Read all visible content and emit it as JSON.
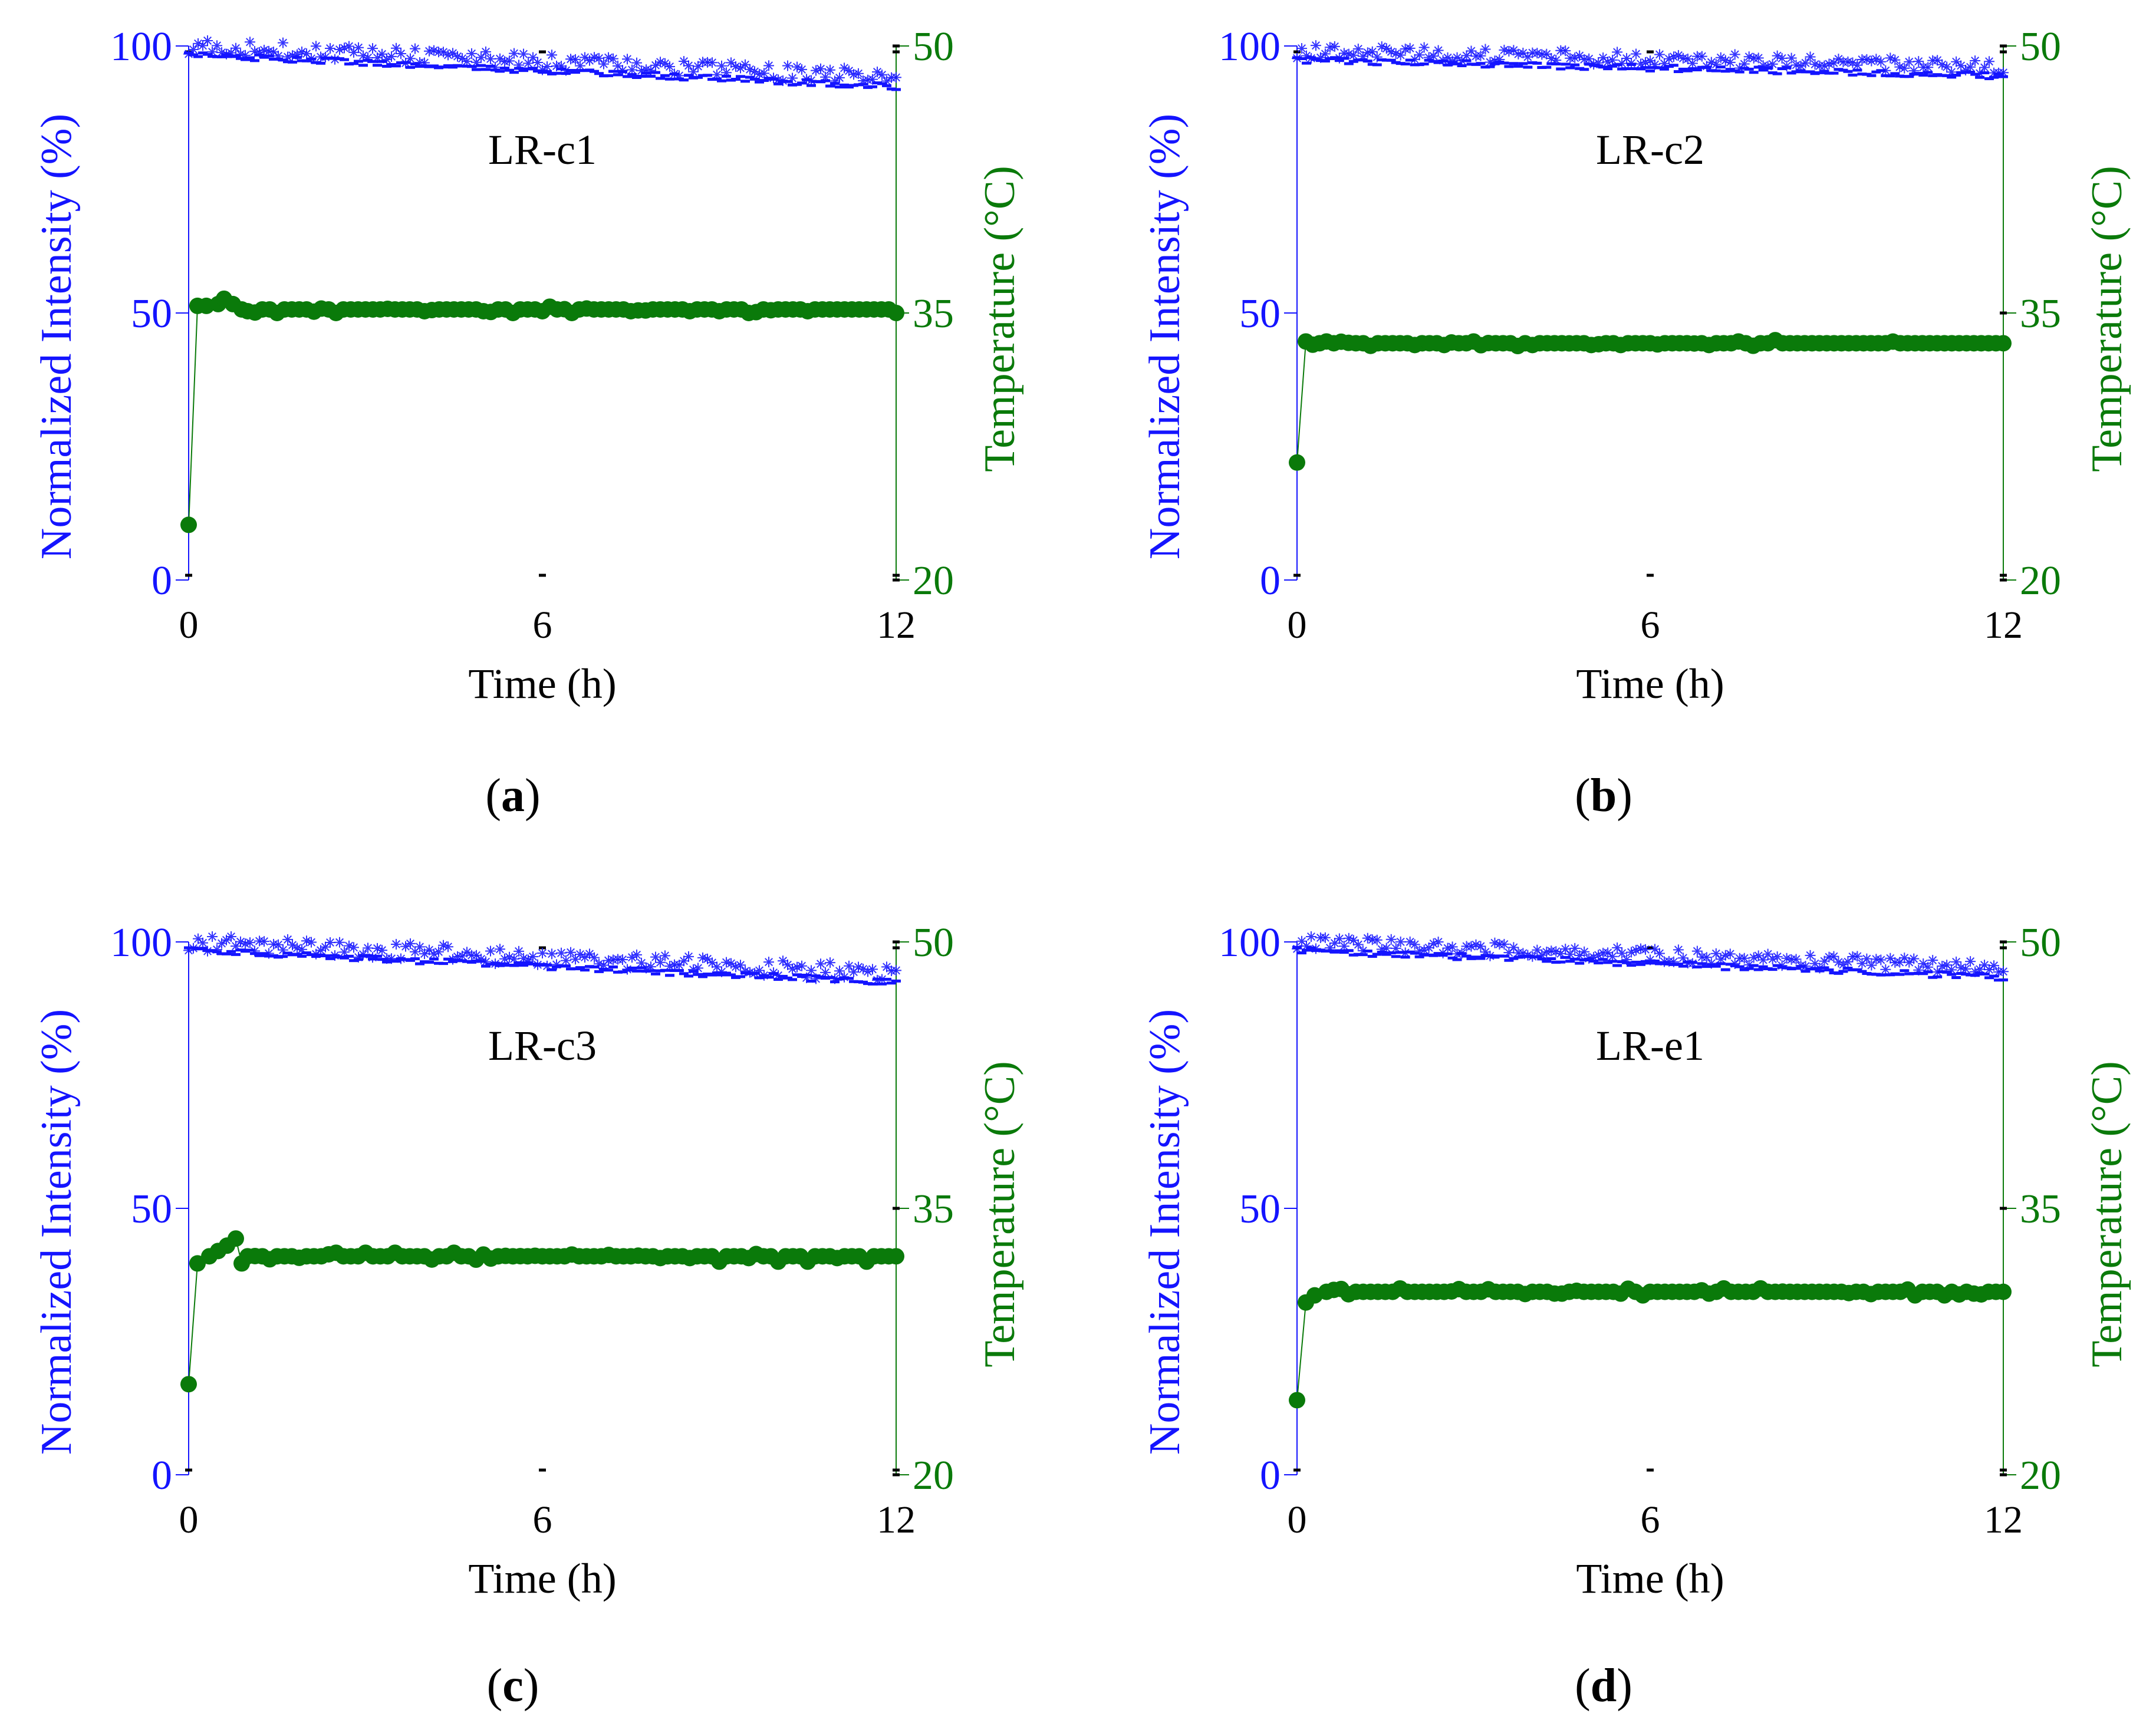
{
  "colors": {
    "intensity": "#1414ff",
    "temperature": "#0a7a0a",
    "axis_text": "#000000"
  },
  "shared": {
    "xlabel": "Time (h)",
    "ylabel_left": "Normalized Intensity (%)",
    "ylabel_right": "Temperature (°C)",
    "xticks": [
      0,
      6,
      12
    ],
    "yticks_left": [
      0,
      50,
      100
    ],
    "yticks_right": [
      20,
      35,
      50
    ],
    "xlim": [
      0,
      12
    ],
    "ylim_left": [
      0,
      100
    ],
    "ylim_right": [
      20,
      50
    ]
  },
  "chart_data": [
    {
      "type": "line",
      "panel": "a",
      "caption_open": "(",
      "caption_letter": "a",
      "caption_close": ")",
      "title": "LR-c1",
      "xlabel": "Time (h)",
      "ylabel": "Normalized Intensity (%)",
      "ylabel_right": "Temperature (°C)",
      "xlim": [
        0,
        12
      ],
      "ylim": [
        0,
        100
      ],
      "ylim_right": [
        20,
        50
      ],
      "series": [
        {
          "name": "Normalized Intensity",
          "axis": "left",
          "marker": "star",
          "start": 100,
          "end": 94,
          "jitter": 1.5
        },
        {
          "name": "Temperature",
          "axis": "right",
          "marker": "circle",
          "points": [
            [
              0,
              23.1
            ],
            [
              0.15,
              35.4
            ],
            [
              0.3,
              35.4
            ],
            [
              0.5,
              35.5
            ],
            [
              0.6,
              35.8
            ],
            [
              0.75,
              35.5
            ],
            [
              0.9,
              35.2
            ],
            [
              1.0,
              35.1
            ],
            [
              1.5,
              35
            ],
            [
              2,
              35.2
            ],
            [
              2.5,
              35
            ],
            [
              3,
              35.2
            ],
            [
              3.5,
              35.2
            ],
            [
              4,
              35.1
            ],
            [
              4.5,
              35.2
            ],
            [
              5,
              35.1
            ],
            [
              5.5,
              35
            ],
            [
              6,
              35.1
            ],
            [
              6.5,
              35
            ],
            [
              7,
              35.2
            ],
            [
              7.5,
              35.1
            ],
            [
              8,
              35.2
            ],
            [
              8.5,
              35.1
            ],
            [
              9,
              35.1
            ],
            [
              9.5,
              35
            ],
            [
              10,
              35.2
            ],
            [
              10.5,
              35.1
            ],
            [
              11,
              35.2
            ],
            [
              11.5,
              35.2
            ],
            [
              12,
              35
            ]
          ],
          "base": 35.2
        }
      ]
    },
    {
      "type": "line",
      "panel": "b",
      "caption_open": "(",
      "caption_letter": "b",
      "caption_close": ")",
      "title": "LR-c2",
      "xlabel": "Time (h)",
      "ylabel": "Normalized Intensity (%)",
      "ylabel_right": "Temperature (°C)",
      "xlim": [
        0,
        12
      ],
      "ylim": [
        0,
        100
      ],
      "ylim_right": [
        20,
        50
      ],
      "series": [
        {
          "name": "Normalized Intensity",
          "axis": "left",
          "marker": "star",
          "start": 99,
          "end": 96,
          "jitter": 1.3
        },
        {
          "name": "Temperature",
          "axis": "right",
          "marker": "circle",
          "points": [
            [
              0,
              26.6
            ],
            [
              0.15,
              33.4
            ],
            [
              0.5,
              33.4
            ],
            [
              1,
              33.3
            ],
            [
              1.5,
              33.3
            ],
            [
              2,
              33.2
            ],
            [
              2.5,
              33.2
            ],
            [
              3,
              33.4
            ],
            [
              3.5,
              33.3
            ],
            [
              4,
              33.2
            ],
            [
              4.5,
              33.3
            ],
            [
              5,
              33.2
            ],
            [
              5.5,
              33.2
            ],
            [
              6,
              33.3
            ],
            [
              6.5,
              33.3
            ],
            [
              7,
              33.2
            ],
            [
              7.5,
              33.4
            ],
            [
              8,
              33.3
            ],
            [
              8.5,
              33.3
            ],
            [
              9,
              33.3
            ],
            [
              9.5,
              33.3
            ],
            [
              10,
              33.3
            ],
            [
              10.5,
              33.3
            ],
            [
              11,
              33.3
            ],
            [
              11.5,
              33.3
            ],
            [
              12,
              33.3
            ]
          ],
          "base": 33.3
        }
      ]
    },
    {
      "type": "line",
      "panel": "c",
      "caption_open": "(",
      "caption_letter": "c",
      "caption_close": ")",
      "title": "LR-c3",
      "xlabel": "Time (h)",
      "ylabel": "Normalized Intensity (%)",
      "ylabel_right": "Temperature (°C)",
      "xlim": [
        0,
        12
      ],
      "ylim": [
        0,
        100
      ],
      "ylim_right": [
        20,
        50
      ],
      "series": [
        {
          "name": "Normalized Intensity",
          "axis": "left",
          "marker": "star",
          "start": 100,
          "end": 94,
          "jitter": 1.6
        },
        {
          "name": "Temperature",
          "axis": "right",
          "marker": "circle",
          "points": [
            [
              0,
              25.1
            ],
            [
              0.15,
              31.9
            ],
            [
              0.35,
              32.3
            ],
            [
              0.5,
              32.6
            ],
            [
              0.65,
              32.9
            ],
            [
              0.8,
              33.3
            ],
            [
              0.9,
              31.9
            ],
            [
              1.0,
              32.3
            ],
            [
              1.5,
              32.3
            ],
            [
              2,
              32.3
            ],
            [
              2.5,
              32.5
            ],
            [
              3,
              32.5
            ],
            [
              3.5,
              32.5
            ],
            [
              4,
              32.3
            ],
            [
              4.5,
              32.5
            ],
            [
              5,
              32.4
            ],
            [
              5.5,
              32.3
            ],
            [
              6,
              32.3
            ],
            [
              6.5,
              32.4
            ],
            [
              7,
              32.3
            ],
            [
              7.5,
              32.3
            ],
            [
              8,
              32.2
            ],
            [
              8.5,
              32.2
            ],
            [
              9,
              32
            ],
            [
              9.5,
              32.2
            ],
            [
              10,
              32
            ],
            [
              10.5,
              32
            ],
            [
              11,
              32.2
            ],
            [
              11.5,
              32
            ],
            [
              12,
              32.3
            ]
          ],
          "base": 32.3
        }
      ]
    },
    {
      "type": "line",
      "panel": "d",
      "caption_open": "(",
      "caption_letter": "d",
      "caption_close": ")",
      "title": "LR-e1",
      "xlabel": "Time (h)",
      "ylabel": "Normalized Intensity (%)",
      "ylabel_right": "Temperature (°C)",
      "xlim": [
        0,
        12
      ],
      "ylim": [
        0,
        100
      ],
      "ylim_right": [
        20,
        50
      ],
      "series": [
        {
          "name": "Normalized Intensity",
          "axis": "left",
          "marker": "star",
          "start": 100,
          "end": 95,
          "jitter": 1.3
        },
        {
          "name": "Temperature",
          "axis": "right",
          "marker": "circle",
          "points": [
            [
              0,
              24.2
            ],
            [
              0.15,
              29.7
            ],
            [
              0.3,
              30.1
            ],
            [
              0.5,
              30.3
            ],
            [
              1,
              30.3
            ],
            [
              1.5,
              30.3
            ],
            [
              2,
              30.3
            ],
            [
              2.5,
              30.3
            ],
            [
              3,
              30.3
            ],
            [
              3.5,
              30.3
            ],
            [
              4,
              30.3
            ],
            [
              4.5,
              30.2
            ],
            [
              5,
              30.3
            ],
            [
              5.5,
              30.2
            ],
            [
              6,
              30.3
            ],
            [
              6.5,
              30.3
            ],
            [
              7,
              30.2
            ],
            [
              7.5,
              30.3
            ],
            [
              8,
              30.3
            ],
            [
              8.5,
              30.3
            ],
            [
              9,
              30.3
            ],
            [
              9.5,
              30.3
            ],
            [
              10,
              30.3
            ],
            [
              10.5,
              30.1
            ],
            [
              11,
              30.1
            ],
            [
              11.5,
              30.2
            ],
            [
              12,
              30.3
            ]
          ],
          "base": 30.3
        }
      ]
    }
  ]
}
